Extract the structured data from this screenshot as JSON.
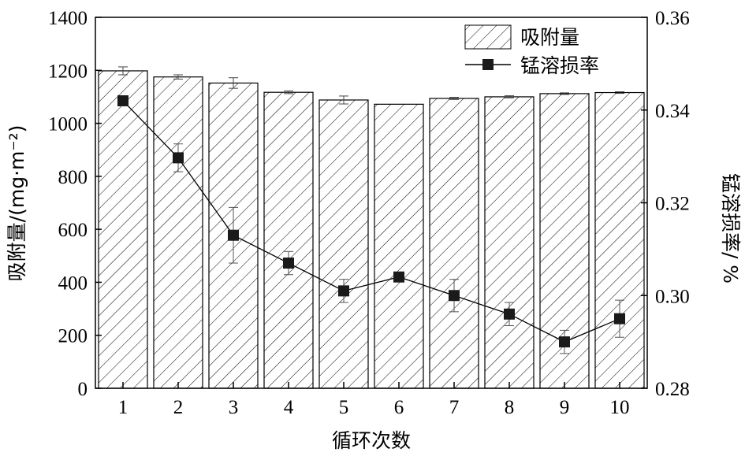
{
  "chart_data": {
    "type": "bar",
    "categories": [
      "1",
      "2",
      "3",
      "4",
      "5",
      "6",
      "7",
      "8",
      "9",
      "10"
    ],
    "xlabel": "循环次数",
    "ylabel_left": "吸附量/(mg·m⁻²)",
    "ylabel_right": "锰溶损率/ %",
    "ylim_left": [
      0,
      1400
    ],
    "ylim_right": [
      0.28,
      0.36
    ],
    "yticks_left": [
      "0",
      "200",
      "400",
      "600",
      "800",
      "1000",
      "1200",
      "1400"
    ],
    "yticks_right": [
      "0.28",
      "0.30",
      "0.32",
      "0.34",
      "0.36"
    ],
    "legend_position": "top-right",
    "grid": false,
    "series": [
      {
        "name": "吸附量",
        "kind": "bar",
        "axis": "left",
        "pattern": "diagonal-hatch",
        "values": [
          1198,
          1175,
          1152,
          1117,
          1088,
          1072,
          1094,
          1100,
          1112,
          1116
        ],
        "error": [
          15,
          8,
          20,
          5,
          15,
          0,
          4,
          4,
          3,
          3
        ]
      },
      {
        "name": "锰溶损率",
        "kind": "line",
        "axis": "right",
        "marker": "square",
        "values": [
          0.342,
          0.3297,
          0.313,
          0.307,
          0.301,
          0.304,
          0.3,
          0.296,
          0.29,
          0.295
        ],
        "error": [
          0.0,
          0.003,
          0.006,
          0.0025,
          0.0025,
          0.001,
          0.0035,
          0.0025,
          0.0025,
          0.004
        ]
      }
    ],
    "colors": {
      "axis": "#000000",
      "bar_fill": "#ffffff",
      "hatch": "#000000",
      "line": "#000000",
      "marker": "#1a1a1a"
    }
  }
}
